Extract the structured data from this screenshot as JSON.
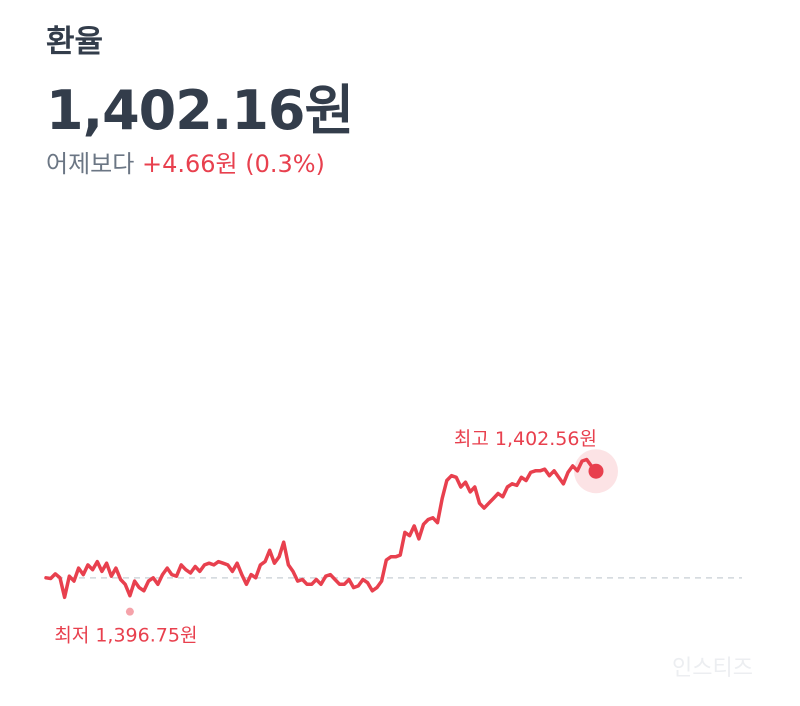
{
  "header": {
    "title": "환율",
    "price": "1,402.16원",
    "change_prefix": "어제보다",
    "change_value": "+4.66원 (0.3%)"
  },
  "colors": {
    "line": "#e8404e",
    "text": "#333d4b",
    "sub_text": "#6b7684",
    "baseline": "#d1d6db"
  },
  "watermark": "인스티즈",
  "chart_data": {
    "type": "line",
    "title": "",
    "xlabel": "",
    "ylabel": "",
    "ylim": [
      1396.2,
      1403.6
    ],
    "reference_value": 1397.5,
    "annotations": {
      "high": {
        "label": "최고 1,402.56원",
        "value": 1402.56,
        "index": 105
      },
      "low": {
        "label": "최저 1,396.75원",
        "value": 1396.75,
        "index": 18
      }
    },
    "values": [
      1397.5,
      1397.48,
      1397.62,
      1397.5,
      1396.9,
      1397.55,
      1397.4,
      1397.8,
      1397.6,
      1397.9,
      1397.75,
      1398.0,
      1397.7,
      1397.95,
      1397.55,
      1397.8,
      1397.45,
      1397.3,
      1396.95,
      1397.4,
      1397.2,
      1397.1,
      1397.4,
      1397.5,
      1397.3,
      1397.6,
      1397.8,
      1397.6,
      1397.55,
      1397.9,
      1397.75,
      1397.65,
      1397.85,
      1397.7,
      1397.9,
      1397.95,
      1397.9,
      1398.0,
      1397.95,
      1397.9,
      1397.7,
      1397.95,
      1397.6,
      1397.3,
      1397.6,
      1397.5,
      1397.9,
      1398.0,
      1398.35,
      1397.95,
      1398.15,
      1398.6,
      1397.9,
      1397.7,
      1397.4,
      1397.45,
      1397.3,
      1397.3,
      1397.45,
      1397.3,
      1397.55,
      1397.6,
      1397.45,
      1397.3,
      1397.3,
      1397.45,
      1397.2,
      1397.25,
      1397.45,
      1397.35,
      1397.1,
      1397.2,
      1397.4,
      1398.05,
      1398.15,
      1398.15,
      1398.2,
      1398.9,
      1398.8,
      1399.1,
      1398.7,
      1399.15,
      1399.3,
      1399.35,
      1399.2,
      1399.95,
      1400.5,
      1400.65,
      1400.6,
      1400.3,
      1400.45,
      1400.15,
      1400.3,
      1399.8,
      1399.65,
      1399.8,
      1399.95,
      1400.1,
      1400.0,
      1400.3,
      1400.4,
      1400.35,
      1400.6,
      1400.5,
      1400.75,
      1400.8,
      1400.8,
      1400.85,
      1400.65,
      1400.8,
      1400.6,
      1400.4,
      1400.75,
      1400.95,
      1400.8,
      1401.1,
      1401.15,
      1400.95,
      1400.85
    ]
  }
}
